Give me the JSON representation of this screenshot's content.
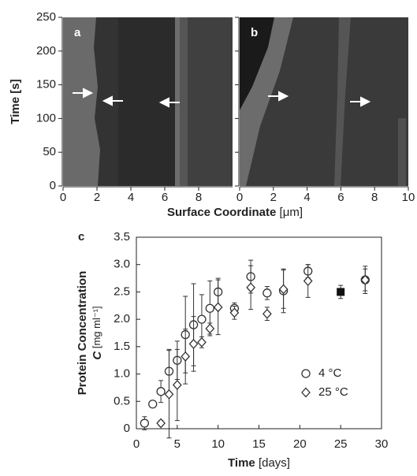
{
  "chart_data": [
    {
      "type": "image",
      "panel_label": "a",
      "ylabel": "Time [s]",
      "xlabel": "Surface Coordinate [μm]",
      "xlim": [
        0,
        10
      ],
      "xticks": [
        0,
        2,
        4,
        6,
        8
      ],
      "ylim": [
        0,
        250
      ],
      "yticks": [
        0,
        50,
        100,
        150,
        200,
        250
      ]
    },
    {
      "type": "image",
      "panel_label": "b",
      "xlim": [
        0,
        10
      ],
      "xticks": [
        0,
        2,
        4,
        6,
        8,
        10
      ],
      "ylim": [
        0,
        250
      ],
      "yticks": [
        0,
        50,
        100,
        150,
        200,
        250
      ]
    },
    {
      "type": "scatter",
      "panel_label": "c",
      "ylabel": [
        "Protein Concentration",
        "C [mg ml⁻¹]"
      ],
      "xlabel": "Time [days]",
      "xlim": [
        0,
        30
      ],
      "xticks": [
        0,
        5,
        10,
        15,
        20,
        25,
        30
      ],
      "ylim": [
        0,
        3.5
      ],
      "yticks": [
        {
          "value": 0,
          "label": "0"
        },
        0.5,
        {
          "value": 1,
          "label": "1.0"
        },
        1.5,
        {
          "value": 2,
          "label": "2.0"
        },
        2.5,
        {
          "value": 3,
          "label": "3.0"
        },
        3.5
      ],
      "legend": "lower right",
      "series": [
        {
          "name": "4 °C",
          "marker": "circle",
          "color": "#333333",
          "x": [
            1,
            2,
            3,
            4,
            5,
            6,
            7,
            8,
            9,
            10,
            12,
            14,
            16,
            18,
            21,
            28
          ],
          "values": [
            0.1,
            0.45,
            0.68,
            1.05,
            1.25,
            1.72,
            1.9,
            2.0,
            2.2,
            2.5,
            2.2,
            2.78,
            2.48,
            2.52,
            2.88,
            2.72
          ],
          "errors": [
            0.12,
            0.05,
            0.2,
            0.4,
            0.35,
            0.7,
            0.75,
            0.45,
            0.5,
            0.25,
            0.1,
            0.3,
            0.12,
            0.4,
            0.12,
            0.25
          ]
        },
        {
          "name": "25 °C",
          "marker": "diamond",
          "color": "#333333",
          "x": [
            3,
            4,
            5,
            6,
            7,
            8,
            9,
            10,
            12,
            14,
            16,
            18,
            21,
            28
          ],
          "values": [
            0.1,
            0.63,
            0.8,
            1.32,
            1.55,
            1.58,
            1.83,
            2.22,
            2.12,
            2.58,
            2.1,
            2.55,
            2.7,
            2.72
          ],
          "errors": [
            0.05,
            0.8,
            0.65,
            0.5,
            0.5,
            0.1,
            0.1,
            0.5,
            0.12,
            0.4,
            0.12,
            0.35,
            0.3,
            0.2
          ]
        },
        {
          "marker": "square",
          "color": "#111111",
          "x": [
            25
          ],
          "values": [
            2.5
          ],
          "errors": [
            0.12
          ]
        }
      ]
    }
  ]
}
